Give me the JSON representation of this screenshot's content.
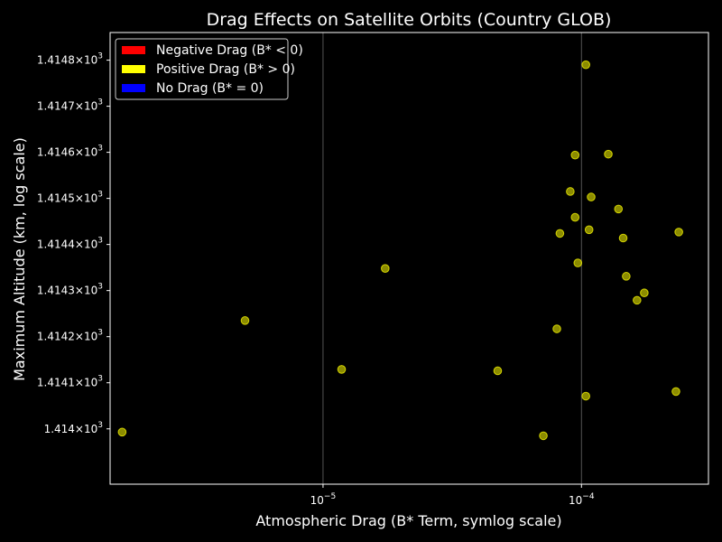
{
  "chart_data": {
    "type": "scatter",
    "title": "Drag Effects on Satellite Orbits (Country GLOB)",
    "xlabel": "Atmospheric Drag (B* Term, symlog scale)",
    "ylabel": "Maximum Altitude (km, log scale)",
    "xscale": "log",
    "yscale": "log",
    "xlim": [
      1.5e-06,
      0.00031
    ],
    "ylim": [
      1413.88,
      1414.86
    ],
    "grid": "vertical-major",
    "legend_position": "top-left",
    "colors": {
      "background": "#000000",
      "negative": "#ff0000",
      "positive": "#ffff00",
      "zero": "#0000ff",
      "grid": "#555555",
      "axes": "#ffffff"
    },
    "x_ticks": [
      {
        "value": 1e-05,
        "base": "10",
        "exp": "−5"
      },
      {
        "value": 0.0001,
        "base": "10",
        "exp": "−4"
      }
    ],
    "y_ticks": [
      {
        "value": 1414.0,
        "mant": "1.414",
        "base": "10",
        "exp": "3"
      },
      {
        "value": 1414.1,
        "mant": "1.4141",
        "base": "10",
        "exp": "3"
      },
      {
        "value": 1414.2,
        "mant": "1.4142",
        "base": "10",
        "exp": "3"
      },
      {
        "value": 1414.3,
        "mant": "1.4143",
        "base": "10",
        "exp": "3"
      },
      {
        "value": 1414.4,
        "mant": "1.4144",
        "base": "10",
        "exp": "3"
      },
      {
        "value": 1414.5,
        "mant": "1.4145",
        "base": "10",
        "exp": "3"
      },
      {
        "value": 1414.6,
        "mant": "1.4146",
        "base": "10",
        "exp": "3"
      },
      {
        "value": 1414.7,
        "mant": "1.4147",
        "base": "10",
        "exp": "3"
      },
      {
        "value": 1414.8,
        "mant": "1.4148",
        "base": "10",
        "exp": "3"
      }
    ],
    "legend": [
      {
        "label": "Negative Drag (B* < 0)",
        "color": "#ff0000"
      },
      {
        "label": "Positive Drag (B* > 0)",
        "color": "#ffff00"
      },
      {
        "label": "No Drag (B* = 0)",
        "color": "#0000ff"
      }
    ],
    "series": [
      {
        "name": "Positive Drag (B* > 0)",
        "color": "#ffff00",
        "points": [
          {
            "x": 0.000104,
            "y": 1414.79
          },
          {
            "x": 9.45e-05,
            "y": 1414.594
          },
          {
            "x": 0.000127,
            "y": 1414.596
          },
          {
            "x": 9.05e-05,
            "y": 1414.515
          },
          {
            "x": 0.000109,
            "y": 1414.503
          },
          {
            "x": 9.45e-05,
            "y": 1414.459
          },
          {
            "x": 0.000139,
            "y": 1414.477
          },
          {
            "x": 0.000107,
            "y": 1414.432
          },
          {
            "x": 8.25e-05,
            "y": 1414.424
          },
          {
            "x": 0.000145,
            "y": 1414.414
          },
          {
            "x": 0.000238,
            "y": 1414.427
          },
          {
            "x": 9.68e-05,
            "y": 1414.36
          },
          {
            "x": 0.000149,
            "y": 1414.331
          },
          {
            "x": 0.000175,
            "y": 1414.295
          },
          {
            "x": 0.000164,
            "y": 1414.279
          },
          {
            "x": 1.74e-05,
            "y": 1414.348
          },
          {
            "x": 4.99e-06,
            "y": 1414.235
          },
          {
            "x": 8.03e-05,
            "y": 1414.217
          },
          {
            "x": 1.18e-05,
            "y": 1414.129
          },
          {
            "x": 4.74e-05,
            "y": 1414.126
          },
          {
            "x": 0.000104,
            "y": 1414.071
          },
          {
            "x": 0.000232,
            "y": 1414.081
          },
          {
            "x": 1.67e-06,
            "y": 1413.993
          },
          {
            "x": 7.12e-05,
            "y": 1413.985
          }
        ]
      }
    ]
  }
}
